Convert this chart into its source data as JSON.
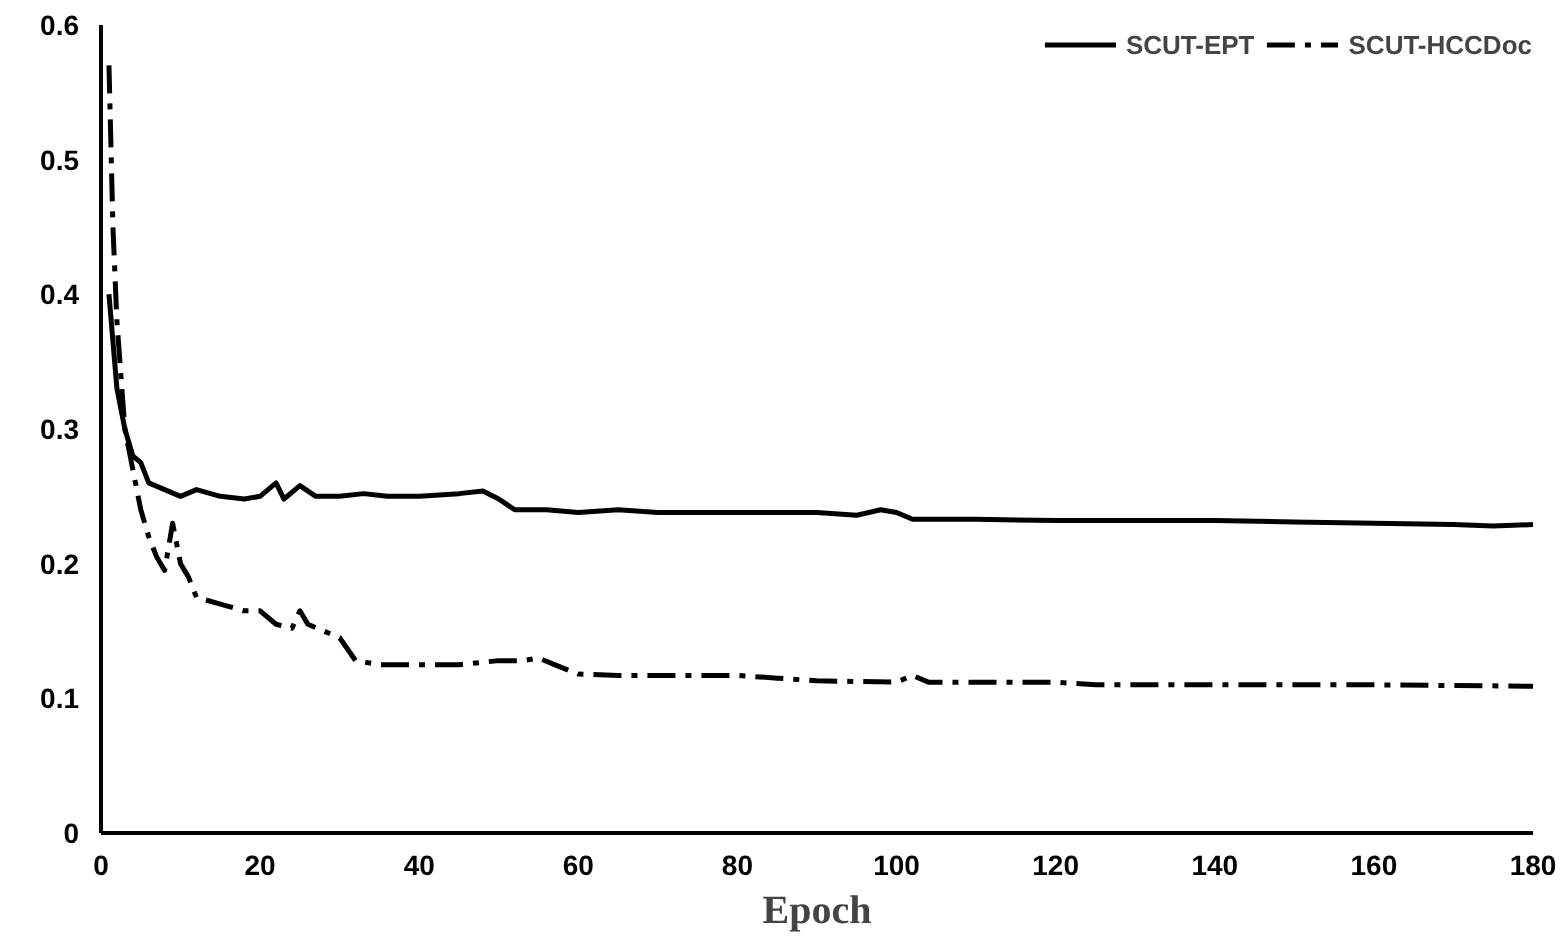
{
  "chart_data": {
    "type": "line",
    "xlabel": "Epoch",
    "xlim": [
      0,
      180
    ],
    "xticks": [
      0,
      20,
      40,
      60,
      80,
      100,
      120,
      140,
      160,
      180
    ],
    "ylim": [
      0,
      0.6
    ],
    "yticks": [
      0,
      0.1,
      0.2,
      0.3,
      0.4,
      0.5,
      0.6
    ],
    "grid": false,
    "legend": "top right",
    "marker": "none",
    "series": [
      {
        "name": "SCUT-EPT",
        "color": "#000000",
        "line_style": "solid",
        "x": [
          1,
          2,
          3,
          4,
          5,
          6,
          8,
          10,
          12,
          15,
          18,
          20,
          22,
          23,
          25,
          27,
          30,
          33,
          36,
          40,
          45,
          48,
          50,
          52,
          56,
          60,
          65,
          70,
          80,
          90,
          95,
          98,
          100,
          102,
          110,
          120,
          130,
          140,
          150,
          160,
          170,
          175,
          180
        ],
        "values": [
          0.4,
          0.33,
          0.3,
          0.28,
          0.275,
          0.26,
          0.255,
          0.25,
          0.255,
          0.25,
          0.248,
          0.25,
          0.26,
          0.248,
          0.258,
          0.25,
          0.25,
          0.252,
          0.25,
          0.25,
          0.252,
          0.254,
          0.248,
          0.24,
          0.24,
          0.238,
          0.24,
          0.238,
          0.238,
          0.238,
          0.236,
          0.24,
          0.238,
          0.233,
          0.233,
          0.232,
          0.232,
          0.232,
          0.231,
          0.23,
          0.229,
          0.228,
          0.229
        ]
      },
      {
        "name": "SCUT-HCCDoc",
        "color": "#000000",
        "line_style": "dashdot",
        "x": [
          1,
          1.5,
          2,
          3,
          4,
          5,
          6,
          7,
          8,
          9,
          10,
          11,
          12,
          15,
          18,
          20,
          22,
          24,
          25,
          26,
          28,
          30,
          32,
          35,
          40,
          45,
          50,
          53,
          55,
          57,
          60,
          65,
          70,
          75,
          80,
          85,
          90,
          100,
          102,
          104,
          110,
          120,
          125,
          140,
          160,
          180
        ],
        "values": [
          0.57,
          0.45,
          0.38,
          0.3,
          0.27,
          0.24,
          0.22,
          0.205,
          0.195,
          0.23,
          0.2,
          0.19,
          0.175,
          0.17,
          0.165,
          0.165,
          0.155,
          0.152,
          0.165,
          0.155,
          0.15,
          0.145,
          0.128,
          0.125,
          0.125,
          0.125,
          0.128,
          0.128,
          0.13,
          0.125,
          0.118,
          0.117,
          0.117,
          0.117,
          0.117,
          0.115,
          0.113,
          0.112,
          0.117,
          0.112,
          0.112,
          0.112,
          0.11,
          0.11,
          0.11,
          0.109
        ]
      }
    ]
  }
}
